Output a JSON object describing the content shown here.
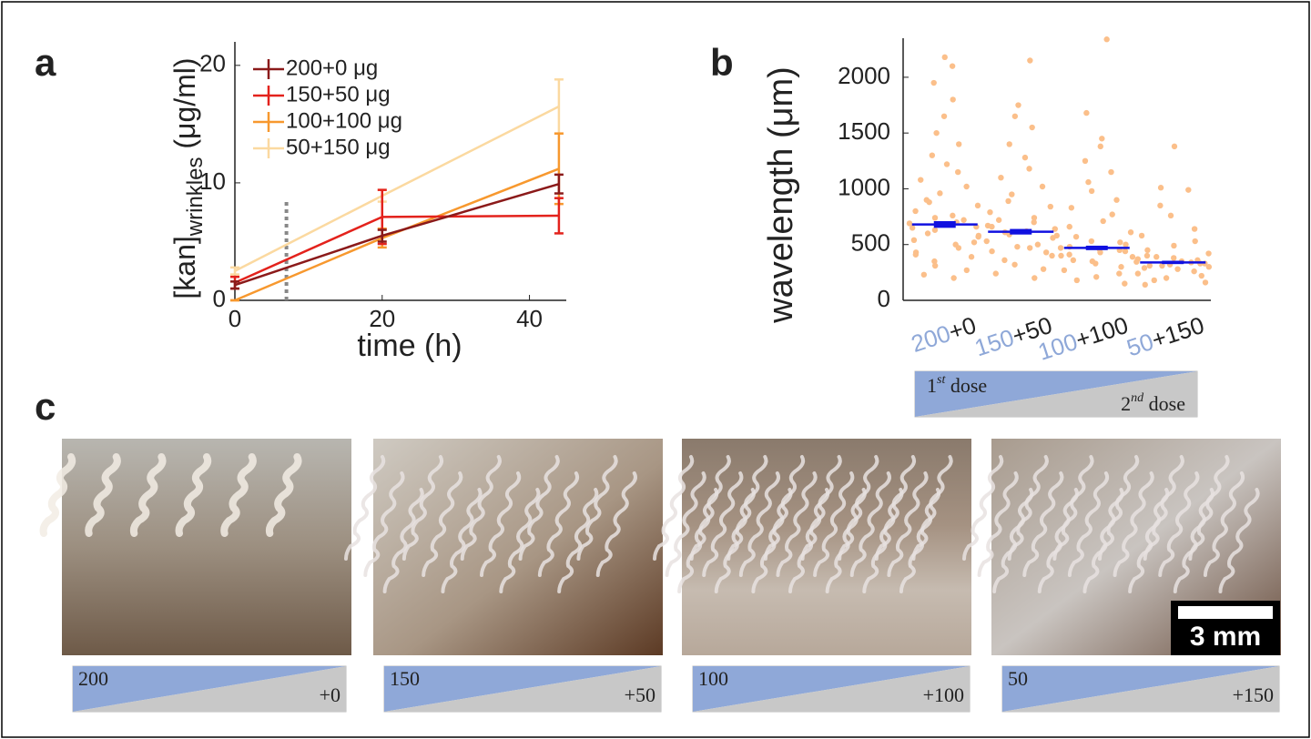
{
  "panel_labels": [
    "a",
    "b",
    "c"
  ],
  "chart_data": [
    {
      "type": "line",
      "xlabel": "time (h)",
      "ylabel": [
        "[kan]",
        "wrinkles",
        " (μg/ml)"
      ],
      "x": [
        0,
        20,
        44
      ],
      "xlim": [
        0,
        45
      ],
      "xticks": [
        0,
        20,
        40
      ],
      "ylim": [
        0,
        22
      ],
      "yticks": [
        0,
        10,
        20
      ],
      "vline": 7,
      "vline_color": "#888888",
      "legend": "upper left",
      "series": [
        {
          "name": "200+0 μg",
          "color": "#8b1a1a",
          "values": [
            1.3,
            5.5,
            9.9
          ],
          "errors": [
            0.3,
            0.5,
            0.8
          ]
        },
        {
          "name": "150+50 μg",
          "color": "#e3221c",
          "values": [
            1.5,
            7.1,
            7.2
          ],
          "errors": [
            0.5,
            2.3,
            1.5
          ]
        },
        {
          "name": "100+100 μg",
          "color": "#f7982e",
          "values": [
            0,
            5.3,
            11.2
          ],
          "errors": [
            0,
            0.8,
            3.0
          ]
        },
        {
          "name": "50+150 μg",
          "color": "#fbd9a0",
          "values": [
            2.5,
            8.9,
            16.5
          ],
          "errors": [
            0.3,
            0.5,
            2.3
          ]
        }
      ]
    },
    {
      "type": "swarm",
      "ylabel": "wavelength (μm)",
      "categories": [
        "200+0",
        "150+50",
        "100+100",
        "50+150"
      ],
      "ylim": [
        0,
        2350
      ],
      "yticks": [
        0,
        500,
        1000,
        1500,
        2000
      ],
      "point_color": "#fbbf8a",
      "median_color": "#1010e0",
      "first_color": "#8fa8d8",
      "points": [
        [
          2180,
          2100,
          1950,
          1800,
          1650,
          1500,
          1400,
          1300,
          1220,
          1150,
          1080,
          1020,
          960,
          900,
          850,
          800,
          760,
          720,
          690,
          660,
          630,
          600,
          570,
          540,
          500,
          470,
          430,
          390,
          350,
          310,
          270,
          230,
          200,
          700,
          650,
          580,
          880,
          740,
          520,
          410
        ],
        [
          2150,
          1750,
          1650,
          1550,
          1400,
          1280,
          1180,
          1100,
          1020,
          950,
          890,
          840,
          790,
          740,
          700,
          670,
          640,
          610,
          590,
          560,
          530,
          500,
          470,
          440,
          400,
          360,
          320,
          280,
          240,
          200,
          620,
          660,
          580,
          720,
          480,
          430
        ],
        [
          2340,
          1680,
          1450,
          1380,
          1250,
          1150,
          1060,
          980,
          900,
          830,
          770,
          710,
          660,
          610,
          570,
          530,
          500,
          470,
          450,
          430,
          410,
          390,
          360,
          330,
          300,
          270,
          240,
          210,
          180,
          150,
          480,
          460,
          520,
          400,
          440,
          350
        ],
        [
          1380,
          1010,
          990,
          850,
          760,
          640,
          580,
          530,
          490,
          450,
          420,
          400,
          380,
          360,
          345,
          330,
          320,
          310,
          300,
          290,
          280,
          260,
          240,
          220,
          200,
          180,
          160,
          140,
          350,
          340,
          370,
          330,
          310,
          390
        ]
      ],
      "medians": [
        680,
        615,
        470,
        340
      ],
      "median_errors": [
        30,
        25,
        20,
        15
      ]
    }
  ],
  "dose_legend": {
    "first": [
      "1",
      "st",
      " dose"
    ],
    "second": [
      "2",
      "nd",
      " dose"
    ]
  },
  "images": [
    {
      "first": "200",
      "second": "+0"
    },
    {
      "first": "150",
      "second": "+50"
    },
    {
      "first": "100",
      "second": "+100"
    },
    {
      "first": "50",
      "second": "+150"
    }
  ],
  "scale_bar": "3 mm"
}
